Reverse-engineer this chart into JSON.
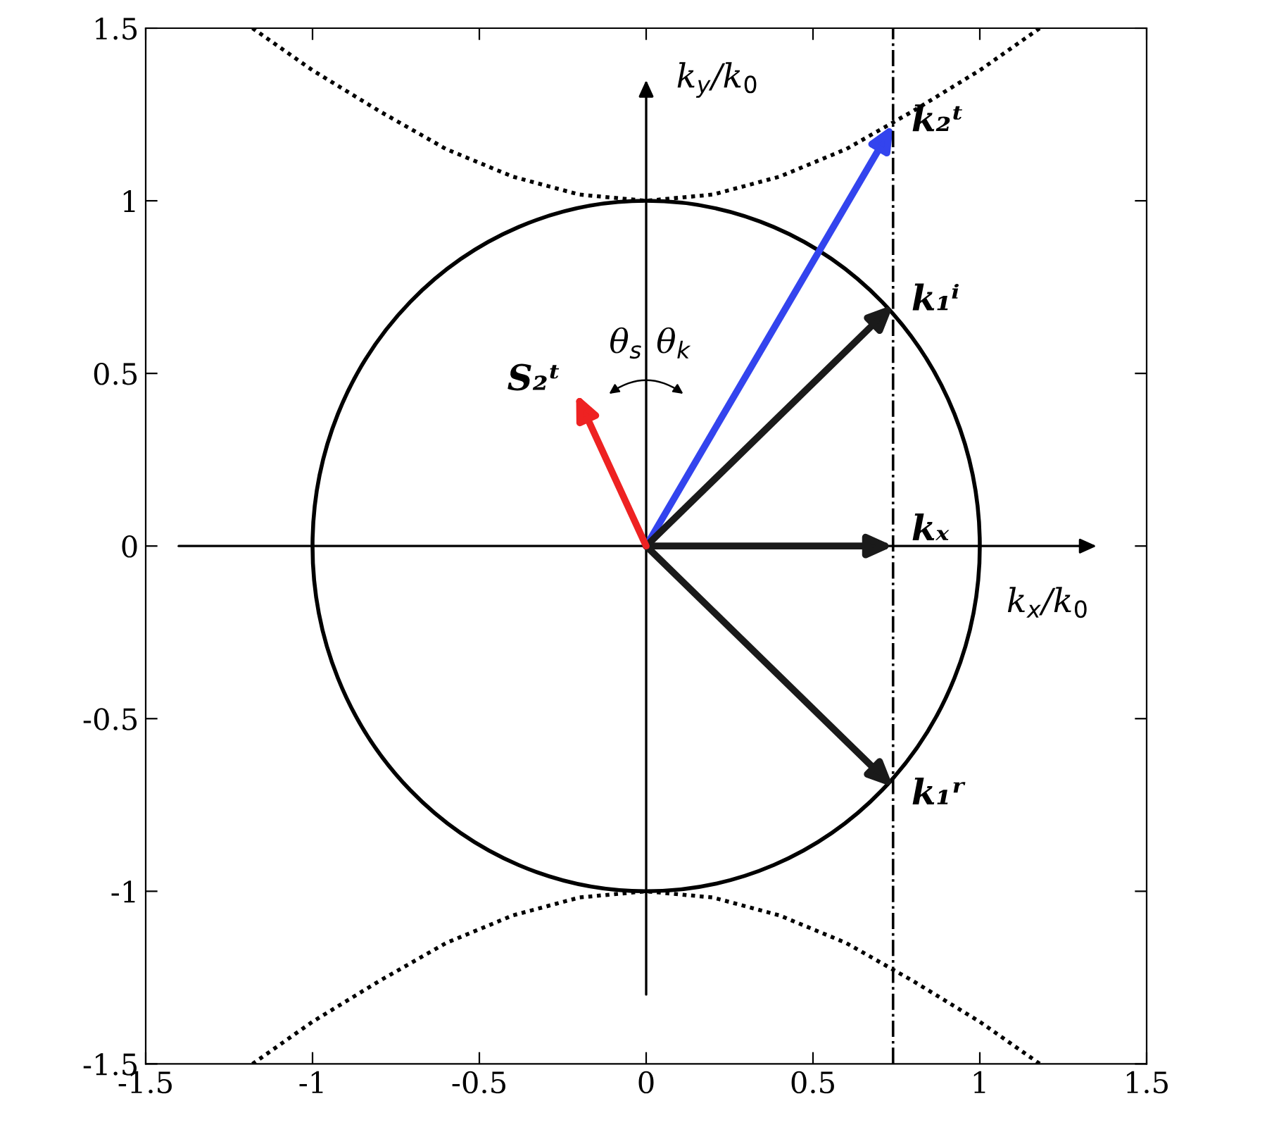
{
  "chart_data": {
    "type": "line",
    "xlim": [
      -1.5,
      1.5
    ],
    "ylim": [
      -1.5,
      1.5
    ],
    "xticks": [
      -1.5,
      -1,
      -0.5,
      0,
      0.5,
      1,
      1.5
    ],
    "yticks": [
      -1.5,
      -1,
      -0.5,
      0,
      0.5,
      1,
      1.5
    ],
    "grid": false,
    "legend": false,
    "series": [
      {
        "color": "#000000",
        "line_style": "dotted",
        "x": [
          -1.18,
          -1.0,
          -0.8,
          -0.6,
          -0.4,
          -0.2,
          0,
          0.2,
          0.4,
          0.6,
          0.8,
          1.0,
          1.18
        ],
        "values": [
          1.5,
          1.378,
          1.26,
          1.15,
          1.07,
          1.018,
          1,
          1.018,
          1.07,
          1.15,
          1.26,
          1.378,
          1.5
        ]
      },
      {
        "color": "#000000",
        "line_style": "dotted",
        "x": [
          -1.18,
          -1.0,
          -0.8,
          -0.6,
          -0.4,
          -0.2,
          0,
          0.2,
          0.4,
          0.6,
          0.8,
          1.0,
          1.18
        ],
        "values": [
          -1.5,
          -1.378,
          -1.26,
          -1.15,
          -1.07,
          -1.018,
          -1,
          -1.018,
          -1.07,
          -1.15,
          -1.26,
          -1.378,
          -1.5
        ]
      }
    ],
    "ref_lines": [
      {
        "axis": "x",
        "value": 0.74,
        "color": "#000000",
        "line_style": "dashdot"
      }
    ],
    "annotations": [
      "k$_{y}$/k$_{0}$",
      "k$_{x}$/k$_{0}$",
      "θ$_{s}$",
      "θ$_{k}$",
      "k₂ᵗ",
      "k₁ⁱ",
      "kₓ",
      "k₁ʳ",
      "S₂ᵗ"
    ]
  }
}
